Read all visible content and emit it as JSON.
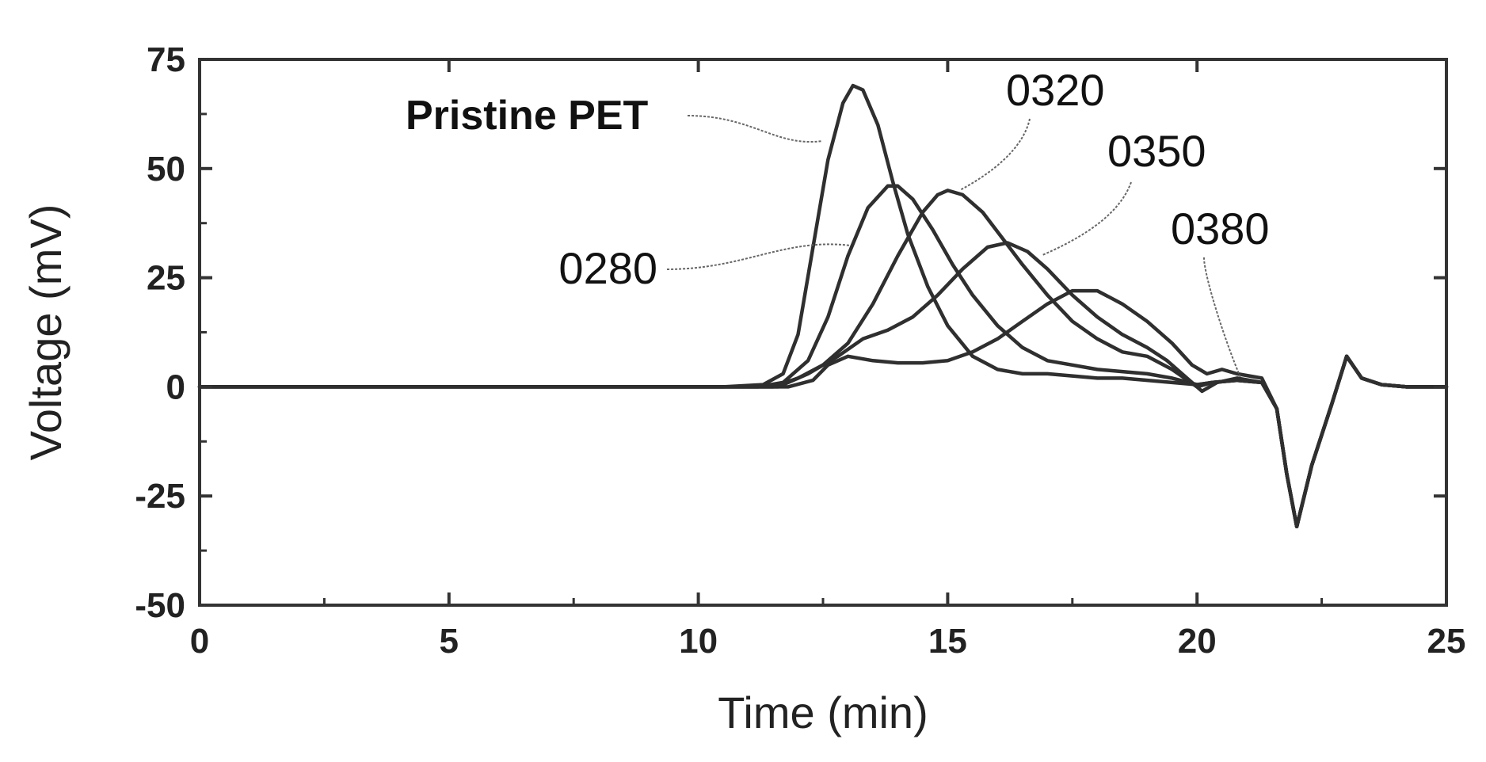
{
  "chart_data": {
    "type": "line",
    "title": "",
    "xlabel": "Time (min)",
    "ylabel": "Voltage (mV)",
    "xlim": [
      0,
      25
    ],
    "ylim": [
      -50,
      75
    ],
    "xticks": [
      0,
      5,
      10,
      15,
      20,
      25
    ],
    "yticks": [
      75,
      50,
      25,
      0,
      -25,
      -50
    ],
    "xtick_labels": [
      "0",
      "5",
      "10",
      "15",
      "20",
      "25"
    ],
    "ytick_labels": [
      "75",
      "50",
      "25",
      "0",
      "-25",
      "-50"
    ],
    "grid": false,
    "series": [
      {
        "name": "Pristine PET",
        "x": [
          0,
          10.5,
          11.3,
          11.7,
          12.0,
          12.3,
          12.6,
          12.9,
          13.1,
          13.3,
          13.6,
          13.9,
          14.2,
          14.6,
          15.0,
          15.5,
          16.0,
          16.5,
          17.0,
          17.5,
          18.0,
          18.5,
          19.0,
          19.5,
          20.0,
          20.3,
          20.8,
          21.3,
          21.6,
          21.8,
          22.0,
          22.3,
          22.7,
          23.0,
          23.3,
          23.7,
          24.2,
          25.0
        ],
        "y": [
          0,
          0,
          0.5,
          3,
          12,
          32,
          52,
          65,
          69,
          68,
          60,
          47,
          35,
          23,
          14,
          7,
          4,
          3,
          3,
          2.5,
          2,
          2,
          1.5,
          1,
          0.5,
          1,
          1.5,
          1,
          -5,
          -20,
          -32,
          -18,
          -4,
          7,
          2,
          0.5,
          0,
          0
        ]
      },
      {
        "name": "0280",
        "x": [
          0,
          11.2,
          11.7,
          12.2,
          12.6,
          13.0,
          13.4,
          13.8,
          14.0,
          14.3,
          14.7,
          15.1,
          15.5,
          16.0,
          16.5,
          17.0,
          17.5,
          18.0,
          18.5,
          19.0,
          19.5,
          20.0,
          20.3,
          20.8,
          21.3,
          21.6,
          21.8,
          22.0,
          22.3,
          22.7,
          23.0,
          23.3,
          23.7,
          24.2,
          25.0
        ],
        "y": [
          0,
          0,
          1,
          6,
          16,
          30,
          41,
          46,
          46,
          43,
          36,
          28,
          21,
          14,
          9,
          6,
          5,
          4,
          3.5,
          3,
          2,
          0.5,
          1,
          1.5,
          1,
          -5,
          -20,
          -32,
          -18,
          -4,
          7,
          2,
          0.5,
          0,
          0
        ]
      },
      {
        "name": "0320",
        "x": [
          0,
          11.5,
          12.0,
          12.5,
          13.0,
          13.5,
          14.0,
          14.5,
          14.8,
          15.0,
          15.3,
          15.7,
          16.1,
          16.5,
          17.0,
          17.5,
          18.0,
          18.5,
          19.0,
          19.5,
          20.0,
          20.3,
          20.8,
          21.3,
          21.6,
          21.8,
          22.0,
          22.3,
          22.7,
          23.0,
          23.3,
          23.7,
          24.2,
          25.0
        ],
        "y": [
          0,
          0,
          2,
          5,
          10,
          19,
          30,
          40,
          44,
          45,
          44,
          40,
          34,
          28,
          21,
          15,
          11,
          8,
          7,
          4,
          0,
          1,
          1.5,
          1,
          -5,
          -20,
          -32,
          -18,
          -4,
          7,
          2,
          0.5,
          0,
          0
        ]
      },
      {
        "name": "0350",
        "x": [
          0,
          11.6,
          12.2,
          12.8,
          13.3,
          13.8,
          14.3,
          14.8,
          15.3,
          15.8,
          16.2,
          16.6,
          17.0,
          17.5,
          18.0,
          18.5,
          19.0,
          19.4,
          19.8,
          20.1,
          20.4,
          20.8,
          21.3,
          21.6,
          21.8,
          22.0,
          22.3,
          22.7,
          23.0,
          23.3,
          23.7,
          24.2,
          25.0
        ],
        "y": [
          0,
          0,
          3,
          7,
          11,
          13,
          16,
          21,
          27,
          32,
          33,
          31,
          27,
          21,
          16,
          12,
          9,
          6,
          2,
          -1,
          1,
          2,
          1,
          -5,
          -20,
          -32,
          -18,
          -4,
          7,
          2,
          0.5,
          0,
          0
        ]
      },
      {
        "name": "0380",
        "x": [
          0,
          11.8,
          12.3,
          12.6,
          13.0,
          13.5,
          14.0,
          14.5,
          15.0,
          15.5,
          16.0,
          16.5,
          17.0,
          17.5,
          18.0,
          18.5,
          19.0,
          19.5,
          19.9,
          20.2,
          20.5,
          20.8,
          21.3,
          21.6,
          21.8,
          22.0,
          22.3,
          22.7,
          23.0,
          23.3,
          23.7,
          24.2,
          25.0
        ],
        "y": [
          0,
          0,
          1.5,
          5,
          7,
          6,
          5.5,
          5.5,
          6,
          8,
          11,
          15,
          19,
          22,
          22,
          19,
          15,
          10,
          5,
          3,
          4,
          3,
          2,
          -5,
          -20,
          -32,
          -18,
          -4,
          7,
          2,
          0.5,
          0,
          0
        ]
      }
    ],
    "annotations": [
      {
        "text": "Pristine PET",
        "bold": true,
        "series": "Pristine PET"
      },
      {
        "text": "0320",
        "bold": false,
        "series": "0320"
      },
      {
        "text": "0350",
        "bold": false,
        "series": "0350"
      },
      {
        "text": "0380",
        "bold": false,
        "series": "0380"
      },
      {
        "text": "0280",
        "bold": false,
        "series": "0280"
      }
    ],
    "line_color": "#2f2f2f"
  }
}
